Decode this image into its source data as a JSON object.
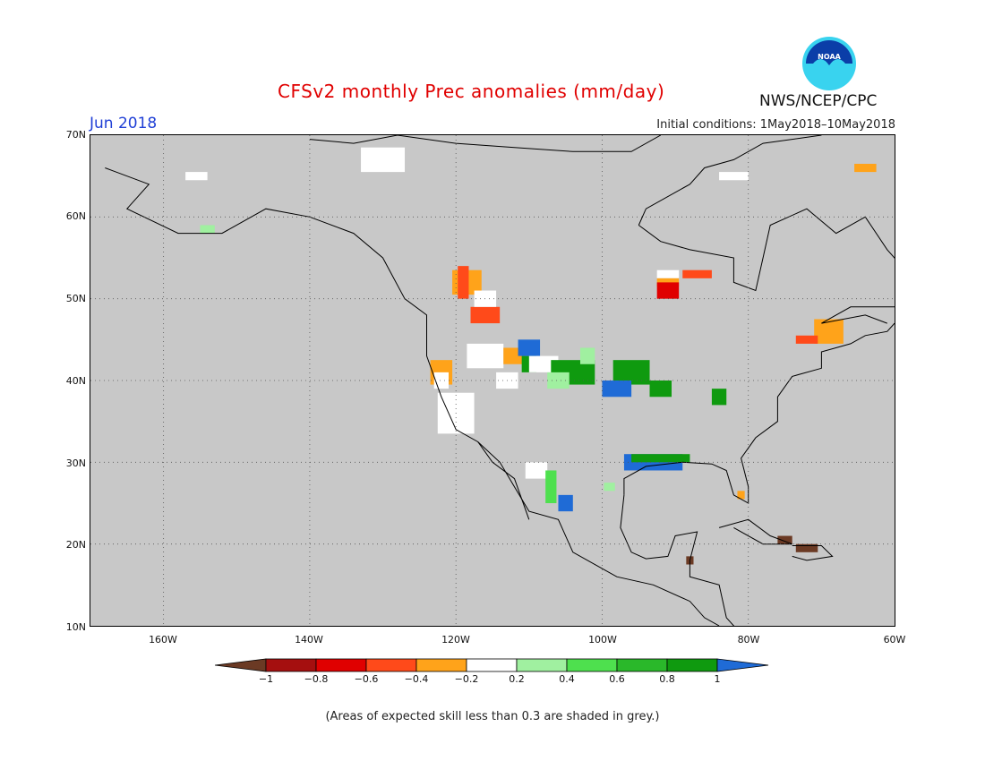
{
  "header": {
    "title": "CFSv2 monthly Prec anomalies (mm/day)",
    "month": "Jun 2018",
    "initial_conditions": "Initial conditions: 1May2018–10May2018",
    "agency": "NWS/NCEP/CPC",
    "logo_text": "NOAA"
  },
  "map": {
    "lon_range": [
      -170,
      -60
    ],
    "lat_range": [
      10,
      70
    ],
    "lat_labels": [
      "70N",
      "60N",
      "50N",
      "40N",
      "30N",
      "20N",
      "10N"
    ],
    "lon_labels": [
      "160W",
      "140W",
      "120W",
      "100W",
      "80W",
      "60W"
    ],
    "background_color": "#c8c8c8",
    "anomaly_patches": [
      {
        "lon": -155.5,
        "lat": 65,
        "w": 3,
        "h": 1,
        "value": 0.0
      },
      {
        "lon": -154,
        "lat": 58.5,
        "w": 2,
        "h": 1,
        "value": 0.3
      },
      {
        "lon": -130,
        "lat": 67,
        "w": 6,
        "h": 3,
        "value": 0.0
      },
      {
        "lon": -118.5,
        "lat": 52,
        "w": 4,
        "h": 3,
        "value": -0.4
      },
      {
        "lon": -119,
        "lat": 52,
        "w": 1.5,
        "h": 4,
        "value": -0.6
      },
      {
        "lon": -116,
        "lat": 48,
        "w": 4,
        "h": 2,
        "value": -0.6
      },
      {
        "lon": -116,
        "lat": 50,
        "w": 3,
        "h": 2,
        "value": 0.0
      },
      {
        "lon": -116,
        "lat": 43,
        "w": 5,
        "h": 3,
        "value": 0.0
      },
      {
        "lon": -112,
        "lat": 43,
        "w": 3,
        "h": 2,
        "value": -0.4
      },
      {
        "lon": -110,
        "lat": 42,
        "w": 2,
        "h": 2,
        "value": 0.8
      },
      {
        "lon": -110,
        "lat": 44,
        "w": 3,
        "h": 2,
        "value": 1.0
      },
      {
        "lon": -122,
        "lat": 41,
        "w": 3,
        "h": 3,
        "value": -0.4
      },
      {
        "lon": -120,
        "lat": 36,
        "w": 5,
        "h": 5,
        "value": 0.0
      },
      {
        "lon": -122,
        "lat": 40,
        "w": 2,
        "h": 2,
        "value": 0.0
      },
      {
        "lon": -113,
        "lat": 40,
        "w": 3,
        "h": 2,
        "value": 0.0
      },
      {
        "lon": -108,
        "lat": 42,
        "w": 4,
        "h": 2,
        "value": 0.0
      },
      {
        "lon": -104,
        "lat": 41,
        "w": 6,
        "h": 3,
        "value": 0.8
      },
      {
        "lon": -106,
        "lat": 40,
        "w": 3,
        "h": 2,
        "value": 0.3
      },
      {
        "lon": -102,
        "lat": 43,
        "w": 2,
        "h": 2,
        "value": 0.3
      },
      {
        "lon": -96,
        "lat": 41,
        "w": 5,
        "h": 3,
        "value": 0.8
      },
      {
        "lon": -98,
        "lat": 39,
        "w": 4,
        "h": 2,
        "value": 1.0
      },
      {
        "lon": -92,
        "lat": 39,
        "w": 3,
        "h": 2,
        "value": 0.8
      },
      {
        "lon": -84,
        "lat": 38,
        "w": 2,
        "h": 2,
        "value": 0.8
      },
      {
        "lon": -93,
        "lat": 30,
        "w": 8,
        "h": 2,
        "value": 1.0
      },
      {
        "lon": -92,
        "lat": 30.5,
        "w": 8,
        "h": 1,
        "value": 0.8
      },
      {
        "lon": -109,
        "lat": 29,
        "w": 3,
        "h": 2,
        "value": 0.0
      },
      {
        "lon": -107,
        "lat": 27,
        "w": 1.5,
        "h": 4,
        "value": 0.5
      },
      {
        "lon": -105,
        "lat": 25,
        "w": 2,
        "h": 2,
        "value": 1.0
      },
      {
        "lon": -99,
        "lat": 27,
        "w": 1.5,
        "h": 1,
        "value": 0.3
      },
      {
        "lon": -91,
        "lat": 53,
        "w": 3,
        "h": 1,
        "value": 0.0
      },
      {
        "lon": -91,
        "lat": 52,
        "w": 3,
        "h": 1,
        "value": -0.4
      },
      {
        "lon": -91,
        "lat": 51,
        "w": 3,
        "h": 2,
        "value": -0.8
      },
      {
        "lon": -87,
        "lat": 53,
        "w": 4,
        "h": 1,
        "value": -0.6
      },
      {
        "lon": -82,
        "lat": 65,
        "w": 4,
        "h": 1,
        "value": 0.0
      },
      {
        "lon": -69,
        "lat": 46,
        "w": 4,
        "h": 3,
        "value": -0.4
      },
      {
        "lon": -72,
        "lat": 45,
        "w": 3,
        "h": 1,
        "value": -0.6
      },
      {
        "lon": -64,
        "lat": 66,
        "w": 3,
        "h": 1,
        "value": -0.4
      },
      {
        "lon": -81,
        "lat": 26,
        "w": 1,
        "h": 1,
        "value": -0.4
      },
      {
        "lon": -75,
        "lat": 20.5,
        "w": 2,
        "h": 1,
        "value": -1.1
      },
      {
        "lon": -72,
        "lat": 19.5,
        "w": 3,
        "h": 1,
        "value": -1.1
      },
      {
        "lon": -88,
        "lat": 18,
        "w": 1,
        "h": 1,
        "value": -1.1
      }
    ]
  },
  "colorbar": {
    "labels": [
      "−1",
      "−0.8",
      "−0.6",
      "−0.4",
      "−0.2",
      "0.2",
      "0.4",
      "0.6",
      "0.8",
      "1"
    ],
    "colors": [
      "#6b3a24",
      "#a50f0f",
      "#e00000",
      "#ff4a1a",
      "#ffa31a",
      "#ffffff",
      "#a0f0a0",
      "#4ee04e",
      "#2ab82a",
      "#0f9a0f",
      "#1f6bd6"
    ]
  },
  "footer": "(Areas of expected skill less than 0.3 are shaded in grey.)"
}
